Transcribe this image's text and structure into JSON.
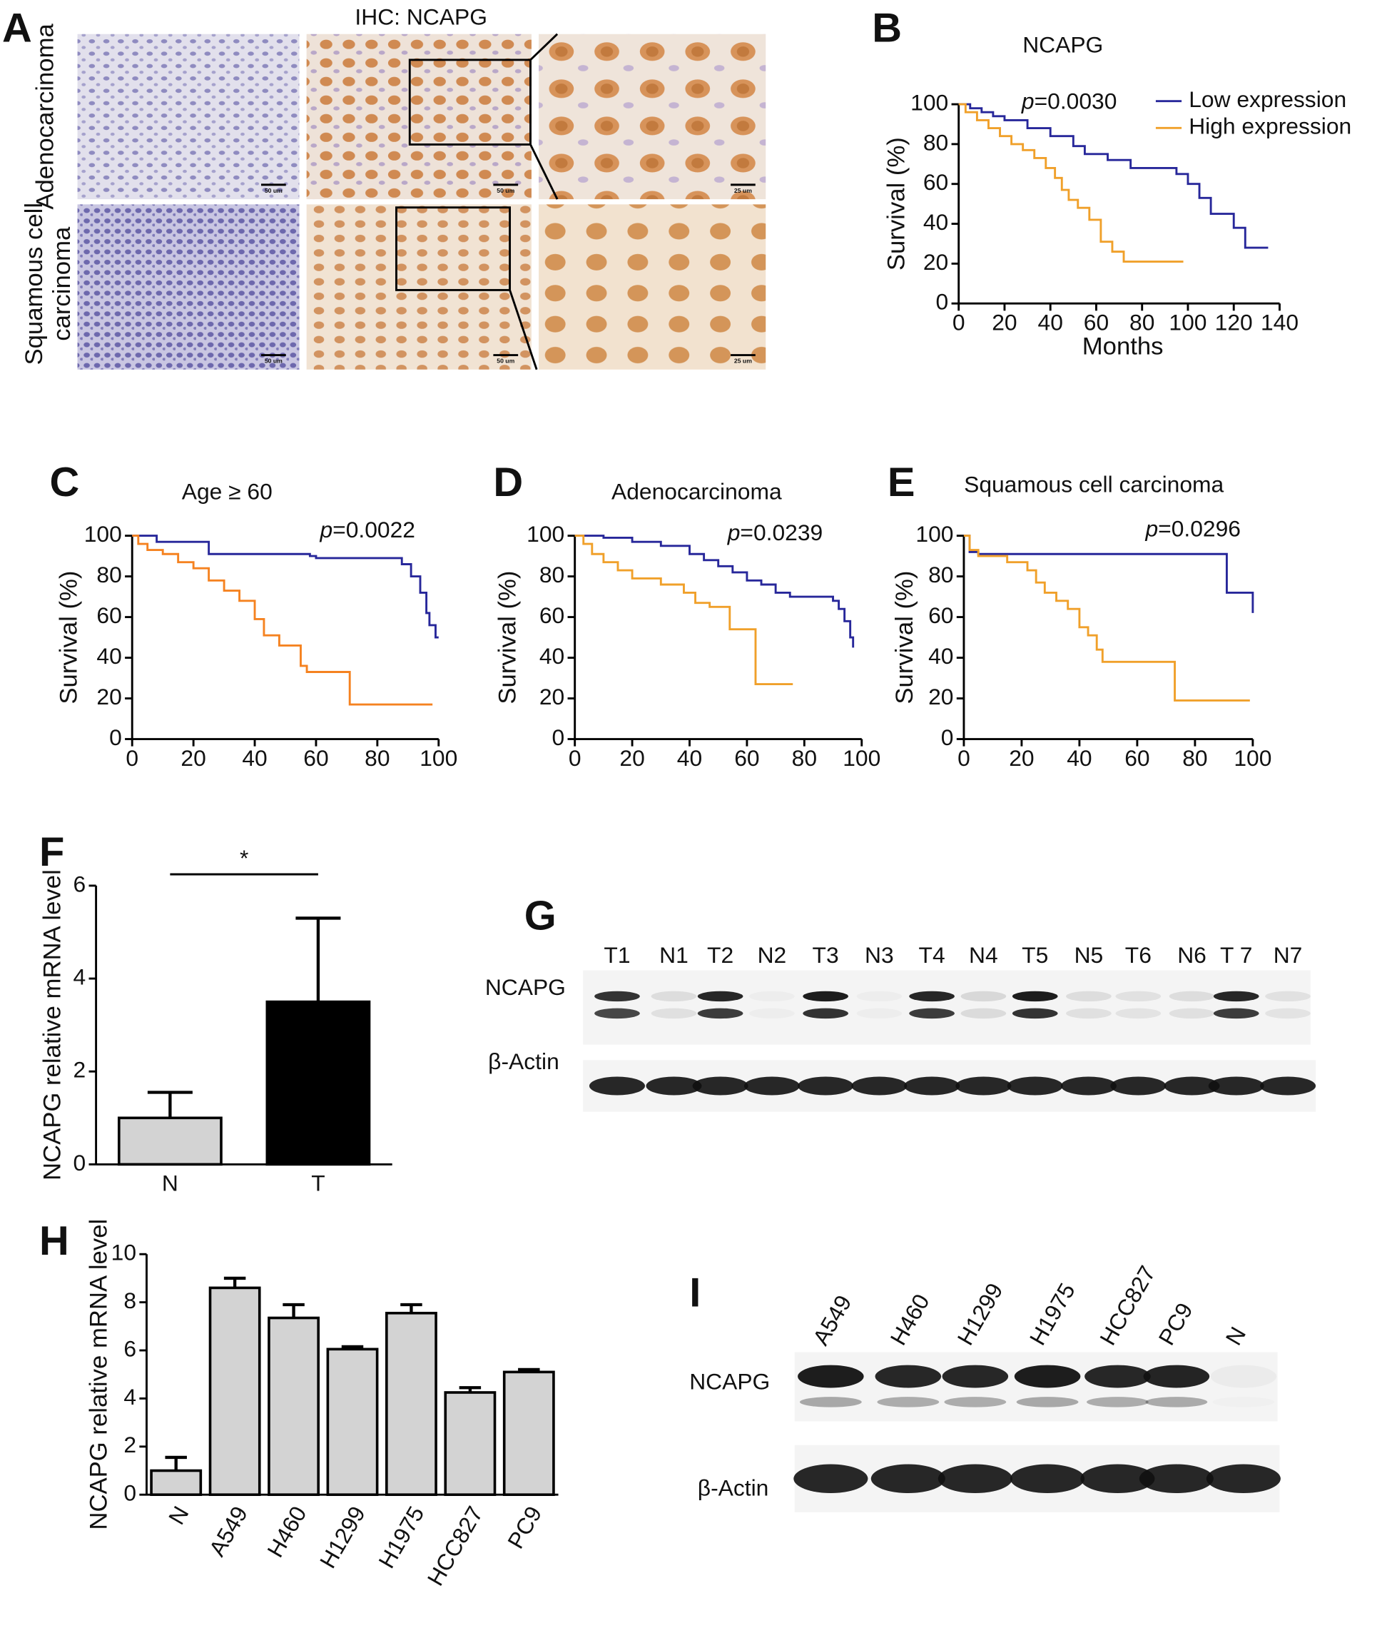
{
  "chart_data": [
    {
      "type": "step",
      "label": "B",
      "title": "NCAPG",
      "xlabel": "Months",
      "ylabel": "Survival (%)",
      "p_symbol": "p",
      "p_value": "=0.0030",
      "xlim": [
        0,
        140
      ],
      "xticks": [
        0,
        20,
        40,
        60,
        80,
        100,
        120,
        140
      ],
      "ylim": [
        0,
        100
      ],
      "yticks": [
        0,
        20,
        40,
        60,
        80,
        100
      ],
      "legend": "upper right",
      "series": [
        {
          "name": "Low expression",
          "color": "#27279a",
          "x": [
            0,
            5,
            10,
            15,
            20,
            30,
            40,
            50,
            55,
            65,
            75,
            95,
            100,
            105,
            110,
            120,
            125,
            135
          ],
          "values": [
            100,
            98,
            96,
            94,
            92,
            88,
            84,
            79,
            75,
            72,
            68,
            65,
            60,
            53,
            45,
            38,
            28,
            28
          ]
        },
        {
          "name": "High expression",
          "color": "#f0a02a",
          "x": [
            0,
            3,
            8,
            13,
            18,
            23,
            28,
            33,
            38,
            42,
            45,
            48,
            52,
            57,
            62,
            67,
            72,
            98
          ],
          "values": [
            100,
            96,
            92,
            88,
            84,
            80,
            77,
            73,
            68,
            63,
            57,
            52,
            48,
            42,
            31,
            26,
            21,
            21
          ]
        }
      ]
    },
    {
      "type": "step",
      "label": "C",
      "title": "Age ≥ 60",
      "ylabel": "Survival (%)",
      "p_symbol": "p",
      "p_value": "=0.0022",
      "xlim": [
        0,
        100
      ],
      "xticks": [
        0,
        20,
        40,
        60,
        80,
        100
      ],
      "ylim": [
        0,
        100
      ],
      "yticks": [
        0,
        20,
        40,
        60,
        80,
        100
      ],
      "series": [
        {
          "color": "#27279a",
          "x": [
            0,
            8,
            25,
            58,
            60,
            88,
            91,
            94,
            96,
            97,
            99,
            100
          ],
          "values": [
            100,
            97,
            91,
            90,
            89,
            86,
            80,
            72,
            62,
            56,
            50,
            50
          ]
        },
        {
          "color": "#f58220",
          "x": [
            0,
            2,
            5,
            10,
            15,
            20,
            25,
            30,
            35,
            40,
            43,
            48,
            55,
            57,
            70,
            71,
            98
          ],
          "values": [
            100,
            96,
            93,
            91,
            87,
            84,
            78,
            73,
            68,
            59,
            51,
            46,
            36,
            33,
            33,
            17,
            17
          ]
        }
      ]
    },
    {
      "type": "step",
      "label": "D",
      "title": "Adenocarcinoma",
      "ylabel": "Survival (%)",
      "p_symbol": "p",
      "p_value": "=0.0239",
      "xlim": [
        0,
        100
      ],
      "xticks": [
        0,
        20,
        40,
        60,
        80,
        100
      ],
      "ylim": [
        0,
        100
      ],
      "yticks": [
        0,
        20,
        40,
        60,
        80,
        100
      ],
      "series": [
        {
          "color": "#27279a",
          "x": [
            0,
            10,
            20,
            30,
            40,
            45,
            50,
            55,
            60,
            65,
            70,
            75,
            90,
            92,
            94,
            96,
            97
          ],
          "values": [
            100,
            99,
            97,
            95,
            91,
            88,
            85,
            82,
            78,
            76,
            72,
            70,
            68,
            64,
            58,
            50,
            45
          ]
        },
        {
          "color": "#f0a02a",
          "x": [
            0,
            3,
            6,
            10,
            15,
            20,
            30,
            38,
            42,
            47,
            54,
            62,
            63,
            76
          ],
          "values": [
            100,
            96,
            91,
            87,
            83,
            79,
            76,
            72,
            67,
            65,
            54,
            54,
            27,
            27
          ]
        }
      ]
    },
    {
      "type": "step",
      "label": "E",
      "title": "Squamous cell carcinoma",
      "ylabel": "Survival (%)",
      "p_symbol": "p",
      "p_value": "=0.0296",
      "xlim": [
        0,
        100
      ],
      "xticks": [
        0,
        20,
        40,
        60,
        80,
        100
      ],
      "ylim": [
        0,
        100
      ],
      "yticks": [
        0,
        20,
        40,
        60,
        80,
        100
      ],
      "series": [
        {
          "color": "#27279a",
          "x": [
            0,
            2,
            5,
            90,
            91,
            99,
            100
          ],
          "values": [
            100,
            92,
            91,
            91,
            72,
            72,
            62
          ]
        },
        {
          "color": "#f0a02a",
          "x": [
            0,
            2,
            5,
            15,
            22,
            25,
            28,
            32,
            36,
            40,
            43,
            46,
            48,
            72,
            73,
            99
          ],
          "values": [
            100,
            93,
            90,
            87,
            83,
            77,
            72,
            68,
            64,
            55,
            51,
            44,
            38,
            38,
            19,
            19
          ]
        }
      ]
    },
    {
      "type": "bar",
      "label": "F",
      "ylabel": "NCAPG relative mRNA level",
      "significance": "*",
      "categories": [
        "N",
        "T"
      ],
      "values": [
        1.0,
        3.5
      ],
      "errors": [
        0.55,
        1.8
      ],
      "colors": [
        "#d3d3d3",
        "#000000"
      ],
      "ylim": [
        0,
        6
      ],
      "yticks": [
        0,
        2,
        4,
        6
      ]
    },
    {
      "type": "bar",
      "label": "H",
      "ylabel": "NCAPG relative mRNA level",
      "categories": [
        "N",
        "A549",
        "H460",
        "H1299",
        "H1975",
        "HCC827",
        "PC9"
      ],
      "values": [
        1.0,
        8.6,
        7.35,
        6.05,
        7.55,
        4.25,
        5.1
      ],
      "errors": [
        0.55,
        0.4,
        0.55,
        0.1,
        0.35,
        0.2,
        0.1
      ],
      "colors": [
        "#d3d3d3",
        "#d3d3d3",
        "#d3d3d3",
        "#d3d3d3",
        "#d3d3d3",
        "#d3d3d3",
        "#d3d3d3"
      ],
      "ylim": [
        0,
        10
      ],
      "yticks": [
        0,
        2,
        4,
        6,
        8,
        10
      ],
      "rotate_labels": true
    }
  ],
  "ihc": {
    "label": "A",
    "title": "IHC: NCAPG",
    "rows": [
      [
        "Adenocarcinoma"
      ],
      [
        "Squamous cell",
        "carcinoma"
      ]
    ],
    "scale_bars": [
      "50 um",
      "50 um",
      "25 um",
      "50 um",
      "50 um",
      "25 um"
    ]
  },
  "blot_g": {
    "label": "G",
    "lanes": [
      "T1",
      "N1",
      "T2",
      "N2",
      "T3",
      "N3",
      "T4",
      "N4",
      "T5",
      "N5",
      "T6",
      "N6",
      "T 7",
      "N7"
    ],
    "rows": [
      "NCAPG",
      "β-Actin"
    ]
  },
  "blot_i": {
    "label": "I",
    "lanes": [
      "A549",
      "H460",
      "H1299",
      "H1975",
      "HCC827",
      "PC9",
      "N"
    ],
    "rows": [
      "NCAPG",
      "β-Actin"
    ]
  }
}
